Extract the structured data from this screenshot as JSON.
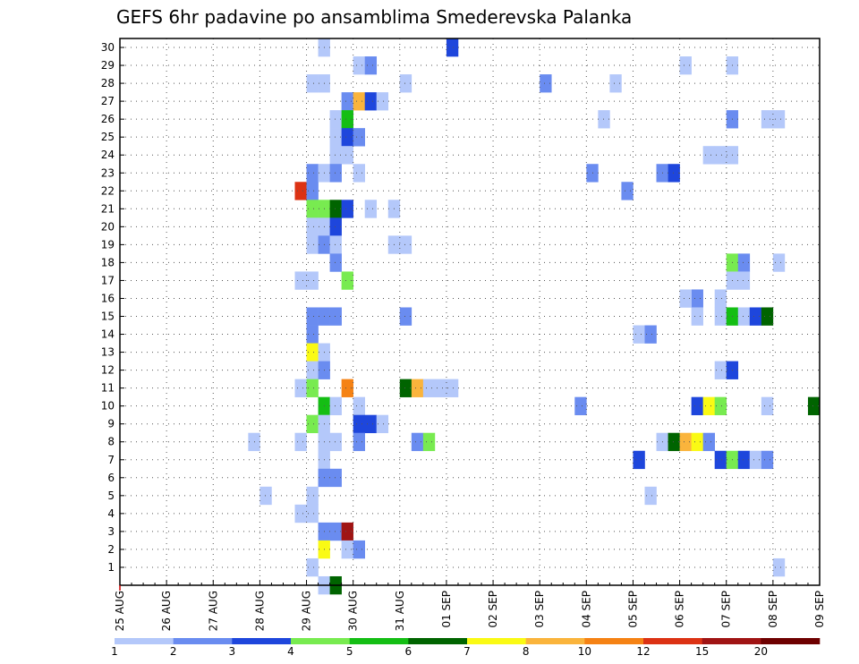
{
  "chart_data": {
    "type": "heatmap",
    "title": "GEFS 6hr padavine po ansamblima Smederevska Palanka",
    "x_tick_labels": [
      "25 AUG",
      "26 AUG",
      "27 AUG",
      "28 AUG",
      "29 AUG",
      "30 AUG",
      "31 AUG",
      "01 SEP",
      "02 SEP",
      "03 SEP",
      "04 SEP",
      "05 SEP",
      "06 SEP",
      "07 SEP",
      "08 SEP",
      "09 SEP"
    ],
    "x_step_hours": 6,
    "y_tick_labels": [
      "1",
      "2",
      "3",
      "4",
      "5",
      "6",
      "7",
      "8",
      "9",
      "10",
      "11",
      "12",
      "13",
      "14",
      "15",
      "16",
      "17",
      "18",
      "19",
      "20",
      "21",
      "22",
      "23",
      "24",
      "25",
      "26",
      "27",
      "28",
      "29",
      "30"
    ],
    "ylim": [
      0,
      30
    ],
    "grid": true,
    "legend_position": "bottom",
    "legend_levels": [
      1,
      2,
      3,
      4,
      5,
      6,
      7,
      8,
      10,
      12,
      15,
      20
    ],
    "colors": [
      "#b4c8fa",
      "#6a8cf0",
      "#1e46dc",
      "#78eb50",
      "#14be14",
      "#006400",
      "#fafa14",
      "#fab43c",
      "#f58214",
      "#dc3214",
      "#a01414",
      "#6e0000"
    ],
    "cells": [
      [
        17,
        30,
        0
      ],
      [
        28,
        30,
        2
      ],
      [
        20,
        29,
        0
      ],
      [
        21,
        29,
        1
      ],
      [
        48,
        29,
        0
      ],
      [
        52,
        29,
        0
      ],
      [
        16,
        28,
        0
      ],
      [
        17,
        28,
        0
      ],
      [
        24,
        28,
        0
      ],
      [
        36,
        28,
        1
      ],
      [
        42,
        28,
        0
      ],
      [
        19,
        27,
        1
      ],
      [
        20,
        27,
        7
      ],
      [
        21,
        27,
        2
      ],
      [
        22,
        27,
        0
      ],
      [
        18,
        26,
        0
      ],
      [
        19,
        26,
        4
      ],
      [
        41,
        26,
        0
      ],
      [
        52,
        26,
        1
      ],
      [
        55,
        26,
        0
      ],
      [
        56,
        26,
        0
      ],
      [
        18,
        25,
        0
      ],
      [
        19,
        25,
        2
      ],
      [
        20,
        25,
        1
      ],
      [
        18,
        24,
        0
      ],
      [
        19,
        24,
        0
      ],
      [
        50,
        24,
        0
      ],
      [
        51,
        24,
        0
      ],
      [
        52,
        24,
        0
      ],
      [
        16,
        23,
        1
      ],
      [
        17,
        23,
        0
      ],
      [
        18,
        23,
        1
      ],
      [
        20,
        23,
        0
      ],
      [
        40,
        23,
        1
      ],
      [
        46,
        23,
        1
      ],
      [
        47,
        23,
        2
      ],
      [
        15,
        22,
        9
      ],
      [
        16,
        22,
        1
      ],
      [
        43,
        22,
        1
      ],
      [
        16,
        21,
        3
      ],
      [
        17,
        21,
        3
      ],
      [
        18,
        21,
        5
      ],
      [
        19,
        21,
        2
      ],
      [
        21,
        21,
        0
      ],
      [
        23,
        21,
        0
      ],
      [
        16,
        20,
        0
      ],
      [
        17,
        20,
        0
      ],
      [
        18,
        20,
        2
      ],
      [
        16,
        19,
        0
      ],
      [
        17,
        19,
        1
      ],
      [
        18,
        19,
        0
      ],
      [
        23,
        19,
        0
      ],
      [
        24,
        19,
        0
      ],
      [
        18,
        18,
        1
      ],
      [
        52,
        18,
        3
      ],
      [
        53,
        18,
        1
      ],
      [
        56,
        18,
        0
      ],
      [
        15,
        17,
        0
      ],
      [
        16,
        17,
        0
      ],
      [
        19,
        17,
        3
      ],
      [
        52,
        17,
        0
      ],
      [
        53,
        17,
        0
      ],
      [
        49,
        16,
        1
      ],
      [
        48,
        16,
        0
      ],
      [
        49,
        15,
        0
      ],
      [
        51,
        16,
        0
      ],
      [
        16,
        15,
        1
      ],
      [
        17,
        15,
        1
      ],
      [
        18,
        15,
        1
      ],
      [
        24,
        15,
        1
      ],
      [
        51,
        15,
        0
      ],
      [
        52,
        15,
        4
      ],
      [
        53,
        15,
        0
      ],
      [
        54,
        15,
        2
      ],
      [
        55,
        15,
        5
      ],
      [
        16,
        14,
        1
      ],
      [
        44,
        14,
        0
      ],
      [
        45,
        14,
        1
      ],
      [
        16,
        13,
        6
      ],
      [
        17,
        13,
        0
      ],
      [
        16,
        12,
        0
      ],
      [
        17,
        12,
        1
      ],
      [
        51,
        12,
        0
      ],
      [
        52,
        12,
        2
      ],
      [
        15,
        11,
        0
      ],
      [
        16,
        11,
        3
      ],
      [
        19,
        11,
        8
      ],
      [
        24,
        11,
        5
      ],
      [
        25,
        11,
        7
      ],
      [
        26,
        11,
        0
      ],
      [
        27,
        11,
        0
      ],
      [
        28,
        11,
        0
      ],
      [
        17,
        10,
        4
      ],
      [
        18,
        10,
        0
      ],
      [
        20,
        10,
        0
      ],
      [
        39,
        10,
        1
      ],
      [
        49,
        10,
        2
      ],
      [
        50,
        10,
        6
      ],
      [
        51,
        10,
        3
      ],
      [
        55,
        10,
        0
      ],
      [
        59,
        10,
        5
      ],
      [
        16,
        9,
        3
      ],
      [
        17,
        9,
        0
      ],
      [
        20,
        9,
        2
      ],
      [
        21,
        9,
        2
      ],
      [
        22,
        9,
        0
      ],
      [
        11,
        8,
        0
      ],
      [
        15,
        8,
        0
      ],
      [
        17,
        8,
        0
      ],
      [
        18,
        8,
        0
      ],
      [
        20,
        8,
        1
      ],
      [
        25,
        8,
        1
      ],
      [
        26,
        8,
        3
      ],
      [
        46,
        8,
        0
      ],
      [
        47,
        8,
        5
      ],
      [
        48,
        8,
        7
      ],
      [
        49,
        8,
        6
      ],
      [
        50,
        8,
        1
      ],
      [
        17,
        7,
        0
      ],
      [
        44,
        7,
        2
      ],
      [
        51,
        7,
        2
      ],
      [
        52,
        7,
        3
      ],
      [
        53,
        7,
        2
      ],
      [
        54,
        7,
        0
      ],
      [
        55,
        7,
        1
      ],
      [
        17,
        6,
        1
      ],
      [
        18,
        6,
        1
      ],
      [
        12,
        5,
        0
      ],
      [
        16,
        5,
        0
      ],
      [
        45,
        5,
        0
      ],
      [
        15,
        4,
        0
      ],
      [
        16,
        4,
        0
      ],
      [
        17,
        3,
        1
      ],
      [
        18,
        3,
        1
      ],
      [
        19,
        3,
        10
      ],
      [
        17,
        2,
        6
      ],
      [
        19,
        2,
        0
      ],
      [
        20,
        2,
        1
      ],
      [
        16,
        1,
        0
      ],
      [
        56,
        1,
        0
      ],
      [
        17,
        0,
        0
      ],
      [
        18,
        0,
        5
      ]
    ]
  }
}
